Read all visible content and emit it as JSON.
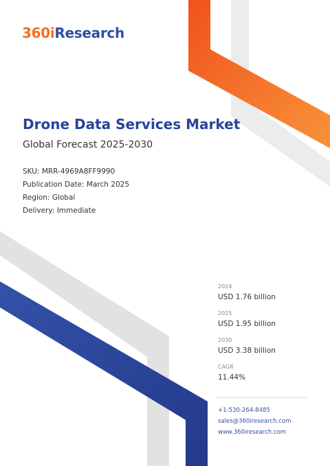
{
  "brand": {
    "logo_number": "360i",
    "logo_word": "Research",
    "number_color": "#f36f21",
    "word_color": "#2f4fa3"
  },
  "report": {
    "title": "Drone Data Services Market",
    "subtitle": "Global Forecast 2025-2030",
    "title_color": "#27439a"
  },
  "details": {
    "sku": "SKU: MRR-4969A8FF9990",
    "publication_date": "Publication Date: March 2025",
    "region": "Region: Global",
    "delivery": "Delivery: Immediate"
  },
  "stats": [
    {
      "year": "2024",
      "value": "USD 1.76 billion"
    },
    {
      "year": "2025",
      "value": "USD 1.95 billion"
    },
    {
      "year": "2030",
      "value": "USD 3.38 billion"
    },
    {
      "year": "CAGR",
      "value": "11.44%"
    }
  ],
  "contacts": {
    "phone": "+1-530-264-8485",
    "email": "sales@360iresearch.com",
    "website": "www.360iresearch.com"
  },
  "colors": {
    "orange": "#f36f21",
    "blue": "#2f4fa3",
    "navy": "#27439a",
    "grey_band": "#e6e6e6"
  }
}
